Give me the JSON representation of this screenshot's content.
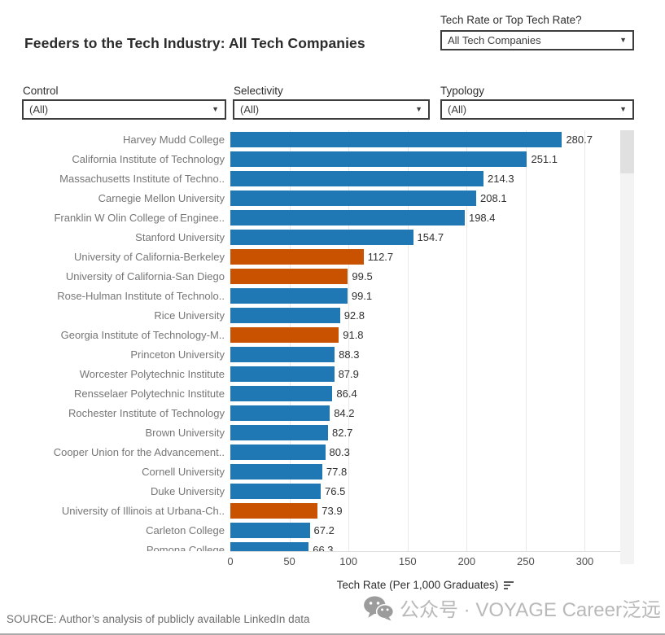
{
  "header": {
    "title": "Feeders to the Tech Industry: All Tech Companies",
    "param": {
      "label": "Tech Rate or Top Tech Rate?",
      "value": "All Tech Companies"
    }
  },
  "filters": [
    {
      "label": "Control",
      "value": "(All)"
    },
    {
      "label": "Selectivity",
      "value": "(All)"
    },
    {
      "label": "Typology",
      "value": "(All)"
    }
  ],
  "icons": {
    "dropdown_caret": "▼"
  },
  "chart_data": {
    "type": "bar",
    "orientation": "horizontal",
    "sort": "descending",
    "title": "Feeders to the Tech Industry: All Tech Companies",
    "xlabel": "Tech Rate (Per 1,000 Graduates)",
    "ticks": [
      0,
      50,
      100,
      150,
      200,
      250,
      300
    ],
    "xlim": [
      0,
      330
    ],
    "palette": {
      "private_blue": "#1f77b4",
      "public_orange": "#c85200"
    },
    "categories": [
      "Harvey Mudd College",
      "California Institute of Technology",
      "Massachusetts Institute of Techno..",
      "Carnegie Mellon University",
      "Franklin W Olin College of Enginee..",
      "Stanford University",
      "University of California-Berkeley",
      "University of California-San Diego",
      "Rose-Hulman Institute of Technolo..",
      "Rice University",
      "Georgia Institute of Technology-M..",
      "Princeton University",
      "Worcester Polytechnic Institute",
      "Rensselaer Polytechnic Institute",
      "Rochester Institute of Technology",
      "Brown University",
      "Cooper Union for the Advancement..",
      "Cornell University",
      "Duke University",
      "University of Illinois at Urbana-Ch..",
      "Carleton College",
      "Pomona College"
    ],
    "values": [
      280.7,
      251.1,
      214.3,
      208.1,
      198.4,
      154.7,
      112.7,
      99.5,
      99.1,
      92.8,
      91.8,
      88.3,
      87.9,
      86.4,
      84.2,
      82.7,
      80.3,
      77.8,
      76.5,
      73.9,
      67.2,
      66.3
    ],
    "colors": [
      "#1f77b4",
      "#1f77b4",
      "#1f77b4",
      "#1f77b4",
      "#1f77b4",
      "#1f77b4",
      "#c85200",
      "#c85200",
      "#1f77b4",
      "#1f77b4",
      "#c85200",
      "#1f77b4",
      "#1f77b4",
      "#1f77b4",
      "#1f77b4",
      "#1f77b4",
      "#1f77b4",
      "#1f77b4",
      "#1f77b4",
      "#c85200",
      "#1f77b4",
      "#1f77b4"
    ]
  },
  "footer": {
    "source": "SOURCE: Author’s analysis of publicly available LinkedIn data",
    "watermark": "公众号 · VOYAGE Career泛远"
  }
}
